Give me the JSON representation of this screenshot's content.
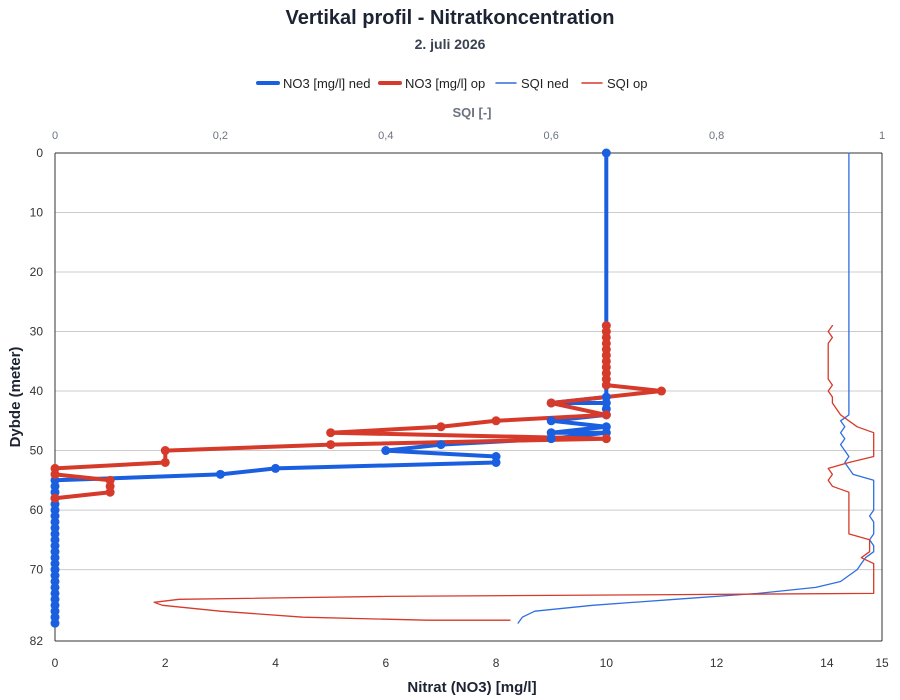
{
  "chart_data": {
    "type": "line",
    "title": "Vertikal profil - Nitratkoncentration",
    "subtitle": "2. juli 2026",
    "xlabel": "Nitrat (NO3) [mg/l]",
    "x2label": "SQI [-]",
    "ylabel": "Dybde (meter)",
    "xlim": [
      0,
      15
    ],
    "x2lim": [
      0,
      1
    ],
    "ylim": [
      82,
      0
    ],
    "x_ticks": [
      "0",
      "2",
      "4",
      "6",
      "8",
      "10",
      "12",
      "14",
      "15"
    ],
    "x2_ticks": [
      "0",
      "0,2",
      "0,4",
      "0,6",
      "0,8",
      "1"
    ],
    "y_ticks": [
      "0",
      "10",
      "20",
      "30",
      "40",
      "50",
      "60",
      "70",
      "82"
    ],
    "grid": true,
    "legend_position": "top",
    "series": [
      {
        "name": "NO3 [mg/l] ned",
        "axis": "bottom",
        "color": "#1a5fe0",
        "markers": true,
        "points": [
          [
            10,
            0
          ],
          [
            10,
            41
          ],
          [
            9,
            42
          ],
          [
            10,
            42
          ],
          [
            10,
            43
          ],
          [
            10,
            44
          ],
          [
            9,
            45
          ],
          [
            10,
            46
          ],
          [
            9,
            47
          ],
          [
            10,
            47
          ],
          [
            9,
            48
          ],
          [
            7,
            49
          ],
          [
            6,
            50
          ],
          [
            8,
            51
          ],
          [
            8,
            52
          ],
          [
            4,
            53
          ],
          [
            3,
            54
          ],
          [
            0,
            55
          ],
          [
            0,
            56
          ],
          [
            0,
            57
          ],
          [
            0,
            58
          ],
          [
            0,
            59
          ],
          [
            0,
            60
          ],
          [
            0,
            61
          ],
          [
            0,
            62
          ],
          [
            0,
            63
          ],
          [
            0,
            64
          ],
          [
            0,
            65
          ],
          [
            0,
            66
          ],
          [
            0,
            67
          ],
          [
            0,
            68
          ],
          [
            0,
            69
          ],
          [
            0,
            70
          ],
          [
            0,
            71
          ],
          [
            0,
            72
          ],
          [
            0,
            73
          ],
          [
            0,
            74
          ],
          [
            0,
            75
          ],
          [
            0,
            76
          ],
          [
            0,
            77
          ],
          [
            0,
            78
          ],
          [
            0,
            79
          ]
        ]
      },
      {
        "name": "NO3 [mg/l] op",
        "axis": "bottom",
        "color": "#d63a2a",
        "markers": true,
        "points": [
          [
            10,
            29
          ],
          [
            10,
            30
          ],
          [
            10,
            31
          ],
          [
            10,
            32
          ],
          [
            10,
            33
          ],
          [
            10,
            34
          ],
          [
            10,
            35
          ],
          [
            10,
            36
          ],
          [
            10,
            37
          ],
          [
            10,
            38
          ],
          [
            10,
            39
          ],
          [
            11,
            40
          ],
          [
            9,
            42
          ],
          [
            10,
            44
          ],
          [
            8,
            45
          ],
          [
            7,
            46
          ],
          [
            5,
            47
          ],
          [
            10,
            48
          ],
          [
            5,
            49
          ],
          [
            2,
            50
          ],
          [
            2,
            52
          ],
          [
            0,
            53
          ],
          [
            0,
            54
          ],
          [
            1,
            55
          ],
          [
            1,
            56
          ],
          [
            1,
            57
          ],
          [
            0,
            58
          ]
        ]
      },
      {
        "name": "SQI ned",
        "axis": "top",
        "color": "#2f6fe0",
        "markers": false,
        "points": [
          [
            0.96,
            0
          ],
          [
            0.96,
            10
          ],
          [
            0.96,
            20
          ],
          [
            0.96,
            30
          ],
          [
            0.96,
            40
          ],
          [
            0.96,
            44
          ],
          [
            0.955,
            44.5
          ],
          [
            0.95,
            45
          ],
          [
            0.955,
            46
          ],
          [
            0.95,
            47
          ],
          [
            0.955,
            48
          ],
          [
            0.95,
            49
          ],
          [
            0.955,
            50
          ],
          [
            0.96,
            51
          ],
          [
            0.955,
            52
          ],
          [
            0.96,
            53
          ],
          [
            0.965,
            54
          ],
          [
            0.99,
            55
          ],
          [
            0.99,
            58
          ],
          [
            0.99,
            60
          ],
          [
            0.985,
            61
          ],
          [
            0.99,
            62
          ],
          [
            0.99,
            64
          ],
          [
            0.985,
            65
          ],
          [
            0.99,
            66
          ],
          [
            0.99,
            67
          ],
          [
            0.98,
            68
          ],
          [
            0.975,
            69
          ],
          [
            0.97,
            70
          ],
          [
            0.96,
            71
          ],
          [
            0.95,
            72
          ],
          [
            0.92,
            73
          ],
          [
            0.85,
            74
          ],
          [
            0.75,
            75
          ],
          [
            0.65,
            76
          ],
          [
            0.58,
            77
          ],
          [
            0.565,
            78
          ],
          [
            0.56,
            79
          ]
        ]
      },
      {
        "name": "SQI op",
        "axis": "top",
        "color": "#d63a2a",
        "markers": false,
        "points": [
          [
            0.94,
            29
          ],
          [
            0.935,
            30
          ],
          [
            0.94,
            31
          ],
          [
            0.935,
            32
          ],
          [
            0.935,
            35
          ],
          [
            0.935,
            38
          ],
          [
            0.94,
            39
          ],
          [
            0.935,
            40
          ],
          [
            0.94,
            41
          ],
          [
            0.94,
            42
          ],
          [
            0.95,
            44
          ],
          [
            0.97,
            46
          ],
          [
            0.99,
            47
          ],
          [
            0.99,
            49
          ],
          [
            0.99,
            51
          ],
          [
            0.96,
            52
          ],
          [
            0.935,
            53
          ],
          [
            0.94,
            54
          ],
          [
            0.935,
            55
          ],
          [
            0.94,
            56
          ],
          [
            0.96,
            57
          ],
          [
            0.96,
            59
          ],
          [
            0.96,
            62
          ],
          [
            0.96,
            64
          ],
          [
            0.985,
            65
          ],
          [
            0.985,
            67
          ],
          [
            0.975,
            68
          ],
          [
            0.99,
            69
          ],
          [
            0.99,
            70
          ],
          [
            0.99,
            71
          ],
          [
            0.99,
            72
          ],
          [
            0.99,
            74
          ],
          [
            0.75,
            74.2
          ],
          [
            0.4,
            74.5
          ],
          [
            0.15,
            75
          ],
          [
            0.12,
            75.5
          ],
          [
            0.13,
            76
          ],
          [
            0.2,
            77
          ],
          [
            0.3,
            78
          ],
          [
            0.45,
            78.5
          ],
          [
            0.55,
            78.5
          ]
        ]
      }
    ]
  }
}
